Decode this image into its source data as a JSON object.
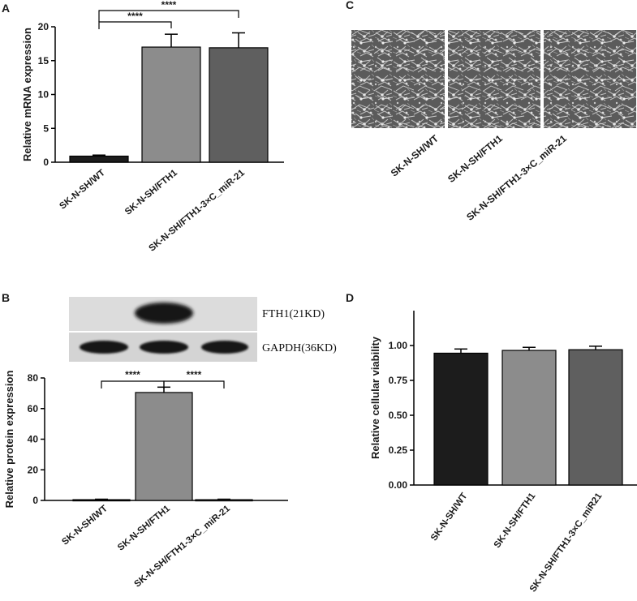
{
  "panels": {
    "A": "A",
    "B": "B",
    "C": "C",
    "D": "D"
  },
  "colors": {
    "wt": "#1c1c1c",
    "fth1": "#8c8c8c",
    "fth1_mir": "#5f5f5f",
    "blot_bg": "#d9d9d9",
    "band": "#1a1a1a",
    "micro_bg": "#5a5a5a"
  },
  "chart_data": [
    {
      "id": "A",
      "type": "bar",
      "categories": [
        "SK-N-SH/WT",
        "SK-N-SH/FTH1",
        "SK-N-SH/FTH1-3×C_miR-21"
      ],
      "values": [
        0.9,
        17.0,
        16.9
      ],
      "errors": [
        0.15,
        1.9,
        2.2
      ],
      "ylabel": "Relative mRNA expression",
      "ylim": [
        0,
        20
      ],
      "yticks": [
        "0",
        "5",
        "10",
        "15",
        "20"
      ],
      "significance": [
        {
          "from": 0,
          "to": 1,
          "label": "****"
        },
        {
          "from": 0,
          "to": 2,
          "label": "****"
        }
      ]
    },
    {
      "id": "B",
      "type": "bar",
      "categories": [
        "SK-N-SH/WT",
        "SK-N-SH/FTH1",
        "SK-N-SH/FTH1-3×C_miR-21"
      ],
      "values": [
        0.5,
        70.5,
        0.5
      ],
      "errors": [
        0.3,
        3.5,
        0.3
      ],
      "ylabel": "Relative protein expression",
      "ylim": [
        0,
        80
      ],
      "yticks": [
        "0",
        "20",
        "40",
        "60",
        "80"
      ],
      "significance": [
        {
          "from": 0,
          "to": 1,
          "label": "****"
        },
        {
          "from": 1,
          "to": 2,
          "label": "****"
        }
      ],
      "blot_labels": [
        "FTH1(21KD)",
        "GAPDH(36KD)"
      ]
    },
    {
      "id": "D",
      "type": "bar",
      "categories": [
        "SK-N-SH/WT",
        "SK-N-SH/FTH1",
        "SK-N-SH/FTH1-3×C_miR21"
      ],
      "values": [
        0.945,
        0.965,
        0.97
      ],
      "errors": [
        0.03,
        0.022,
        0.025
      ],
      "ylabel": "Relative cellular viability",
      "ylim": [
        0,
        1.25
      ],
      "yticks": [
        "0.00",
        "0.25",
        "0.50",
        "0.75",
        "1.00"
      ]
    }
  ],
  "microscopy": {
    "labels": [
      "SK-N-SH/WT",
      "SK-N-SH/FTH1",
      "SK-N-SH/FTH1-3×C_miR-21"
    ]
  }
}
